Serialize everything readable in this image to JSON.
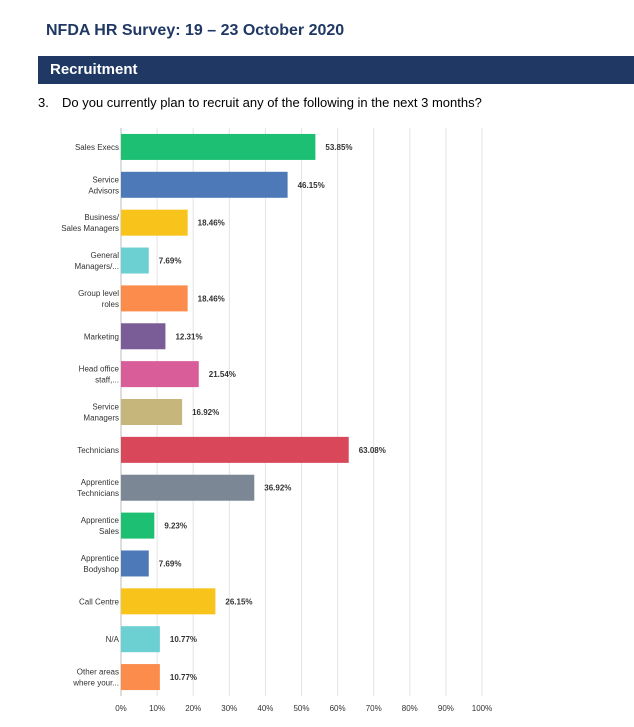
{
  "header": {
    "title": "NFDA HR Survey: 19 – 23 October 2020"
  },
  "section": {
    "label": "Recruitment"
  },
  "question": {
    "number": "3.",
    "text": "Do you currently plan to recruit any of the following in the next 3 months?"
  },
  "chart_data": {
    "type": "bar",
    "orientation": "horizontal",
    "categories": [
      [
        "Sales Execs"
      ],
      [
        "Service",
        "Advisors"
      ],
      [
        "Business/",
        "Sales Managers"
      ],
      [
        "General",
        "Managers/..."
      ],
      [
        "Group level",
        "roles"
      ],
      [
        "Marketing"
      ],
      [
        "Head office",
        "staff,..."
      ],
      [
        "Service",
        "Managers"
      ],
      [
        "Technicians"
      ],
      [
        "Apprentice",
        "Technicians"
      ],
      [
        "Apprentice",
        "Sales"
      ],
      [
        "Apprentice",
        "Bodyshop"
      ],
      [
        "Call Centre"
      ],
      [
        "N/A"
      ],
      [
        "Other areas",
        "where your..."
      ]
    ],
    "values": [
      53.85,
      46.15,
      18.46,
      7.69,
      18.46,
      12.31,
      21.54,
      16.92,
      63.08,
      36.92,
      9.23,
      7.69,
      26.15,
      10.77,
      10.77
    ],
    "value_labels": [
      "53.85%",
      "46.15%",
      "18.46%",
      "7.69%",
      "18.46%",
      "12.31%",
      "21.54%",
      "16.92%",
      "63.08%",
      "36.92%",
      "9.23%",
      "7.69%",
      "26.15%",
      "10.77%",
      "10.77%"
    ],
    "colors": [
      "#1dbf73",
      "#4e79b8",
      "#f8c31a",
      "#6ccfd1",
      "#fb8c4c",
      "#7a5c97",
      "#d95d98",
      "#c7b67c",
      "#d9475a",
      "#7b8794",
      "#1dbf73",
      "#4e79b8",
      "#f8c31a",
      "#6ccfd1",
      "#fb8c4c"
    ],
    "xlim": [
      0,
      100
    ],
    "x_ticks": [
      "0%",
      "10%",
      "20%",
      "30%",
      "40%",
      "50%",
      "60%",
      "70%",
      "80%",
      "90%",
      "100%"
    ],
    "grid": true,
    "legend": "none"
  }
}
